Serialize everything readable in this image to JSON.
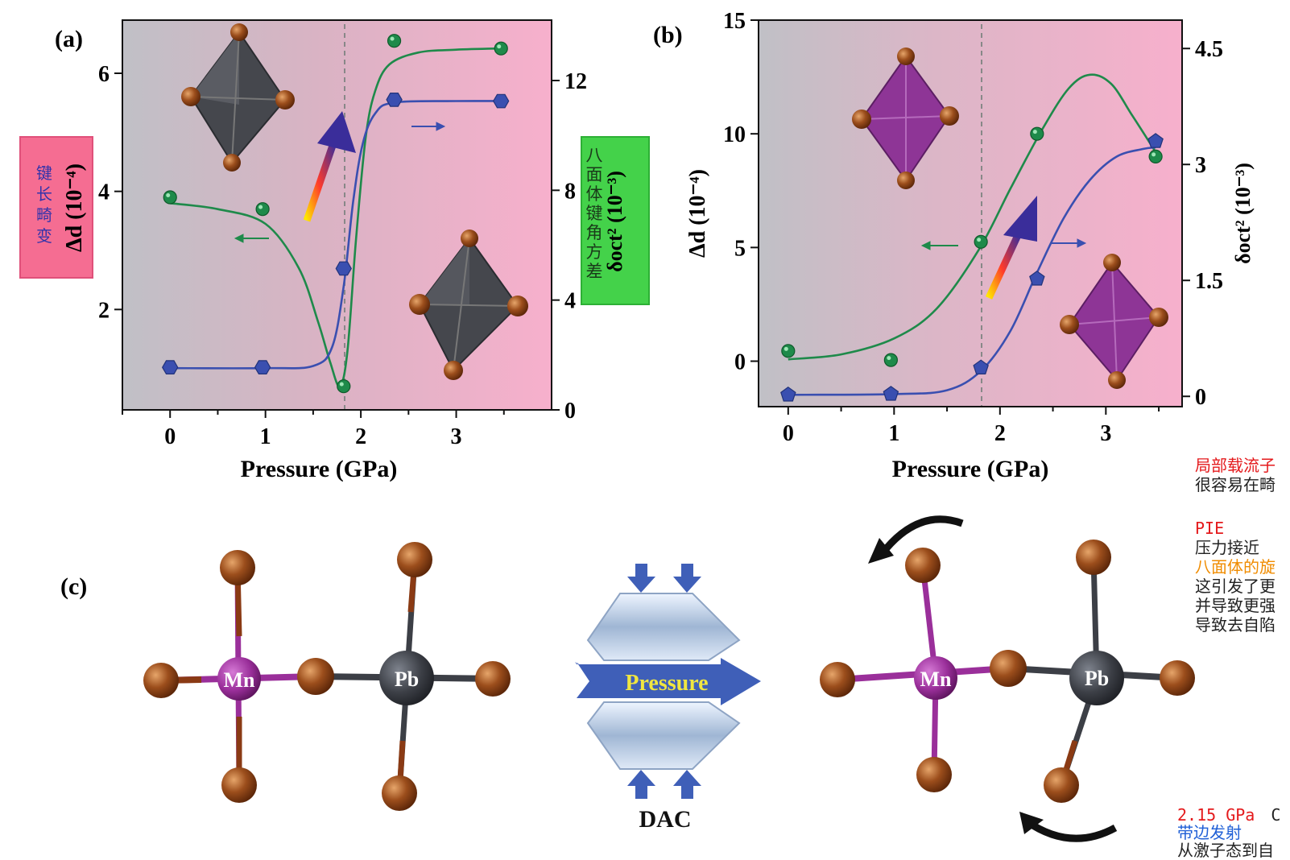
{
  "colors": {
    "green": "#1e8a4a",
    "blue": "#3a4fb0",
    "bg_grey": "#c0c0c6",
    "bg_pink": "#f7b0cc",
    "dash": "#888888",
    "box_pink": "#f56d92",
    "box_green": "#44d24a",
    "octa_grey": "#45474d",
    "octa_purple": "#8e3596",
    "br": "#7a3410",
    "mn": "#9a2f9a",
    "pb": "#3c3f46",
    "arrow": "#3f5fb8",
    "pressure_text": "#f0e640"
  },
  "panels": {
    "a": "(a)",
    "b": "(b)",
    "c": "(c)"
  },
  "chart_data": [
    {
      "type": "line",
      "panel": "(a)",
      "xlabel": "Pressure (GPa)",
      "xlim": [
        -0.5,
        4.0
      ],
      "xticks": [
        "0",
        "1",
        "2",
        "3"
      ],
      "ylabel_left": "Δd (10⁻⁴)",
      "ylim_left": [
        0.3,
        6.9
      ],
      "yticks_left": [
        "2",
        "4",
        "6"
      ],
      "ylabel_right": "δoct² (10⁻³)",
      "ylim_right": [
        0,
        14.2
      ],
      "yticks_right": [
        "0",
        "4",
        "8",
        "12"
      ],
      "vline_x": 1.82,
      "series": [
        {
          "axis": "left",
          "color": "green",
          "marker": "circle",
          "points": [
            [
              0,
              3.9
            ],
            [
              0.97,
              3.7
            ],
            [
              1.82,
              0.7
            ],
            [
              2.35,
              6.55
            ],
            [
              3.47,
              6.42
            ]
          ],
          "fit": [
            [
              0,
              3.8
            ],
            [
              0.5,
              3.7
            ],
            [
              1.0,
              3.45
            ],
            [
              1.35,
              2.7
            ],
            [
              1.55,
              1.8
            ],
            [
              1.68,
              1.1
            ],
            [
              1.78,
              0.7
            ],
            [
              1.86,
              1.3
            ],
            [
              1.95,
              3.2
            ],
            [
              2.05,
              4.9
            ],
            [
              2.15,
              5.7
            ],
            [
              2.3,
              6.15
            ],
            [
              2.6,
              6.35
            ],
            [
              3.0,
              6.4
            ],
            [
              3.47,
              6.42
            ]
          ]
        },
        {
          "axis": "right",
          "color": "blue",
          "marker": "hexagon",
          "points": [
            [
              0,
              1.55
            ],
            [
              0.97,
              1.55
            ],
            [
              1.82,
              5.15
            ],
            [
              2.35,
              11.3
            ],
            [
              3.47,
              11.25
            ]
          ],
          "fit": [
            [
              0,
              1.52
            ],
            [
              1.0,
              1.52
            ],
            [
              1.5,
              1.6
            ],
            [
              1.7,
              2.3
            ],
            [
              1.82,
              4.5
            ],
            [
              1.92,
              7.6
            ],
            [
              2.02,
              9.7
            ],
            [
              2.15,
              10.8
            ],
            [
              2.35,
              11.2
            ],
            [
              3.0,
              11.25
            ],
            [
              3.47,
              11.25
            ]
          ]
        }
      ],
      "boxes": {
        "left_cn": [
          "键",
          "长",
          "畸",
          "变"
        ],
        "right_cn": [
          "八",
          "面",
          "体",
          "键",
          "角",
          "方",
          "差"
        ]
      }
    },
    {
      "type": "line",
      "panel": "(b)",
      "xlabel": "Pressure (GPa)",
      "xlim": [
        -0.28,
        3.72
      ],
      "xticks": [
        "0",
        "1",
        "2",
        "3"
      ],
      "ylabel_left": "Δd (10⁻⁴)",
      "ylim_left": [
        -2,
        15
      ],
      "yticks_left": [
        "0",
        "5",
        "10",
        "15"
      ],
      "ylabel_right": "δoct² (10⁻³)",
      "ylim_right": [
        -0.133,
        4.867
      ],
      "yticks_right": [
        "0",
        "1.5",
        "3",
        "4.5"
      ],
      "vline_x": 1.82,
      "series": [
        {
          "axis": "left",
          "color": "green",
          "marker": "circle",
          "points": [
            [
              0,
              0.45
            ],
            [
              0.97,
              0.05
            ],
            [
              1.82,
              5.25
            ],
            [
              2.35,
              10.0
            ],
            [
              3.47,
              9.0
            ]
          ],
          "fit": [
            [
              0,
              0.08
            ],
            [
              0.5,
              0.3
            ],
            [
              1.0,
              1.0
            ],
            [
              1.4,
              2.3
            ],
            [
              1.8,
              4.9
            ],
            [
              2.1,
              7.6
            ],
            [
              2.4,
              10.2
            ],
            [
              2.65,
              12.0
            ],
            [
              2.85,
              12.6
            ],
            [
              3.05,
              12.2
            ],
            [
              3.25,
              10.8
            ],
            [
              3.47,
              9.2
            ]
          ]
        },
        {
          "axis": "right",
          "color": "blue",
          "marker": "pentagon",
          "points": [
            [
              0,
              0.02
            ],
            [
              0.97,
              0.03
            ],
            [
              1.82,
              0.37
            ],
            [
              2.35,
              1.52
            ],
            [
              3.47,
              3.3
            ]
          ],
          "fit": [
            [
              0,
              0.02
            ],
            [
              1.0,
              0.03
            ],
            [
              1.5,
              0.08
            ],
            [
              1.82,
              0.33
            ],
            [
              2.1,
              0.85
            ],
            [
              2.35,
              1.6
            ],
            [
              2.6,
              2.3
            ],
            [
              2.85,
              2.8
            ],
            [
              3.1,
              3.1
            ],
            [
              3.35,
              3.2
            ],
            [
              3.47,
              3.22
            ]
          ]
        }
      ]
    }
  ],
  "schematic": {
    "mn": "Mn",
    "pb": "Pb",
    "pressure": "Pressure",
    "dac": "DAC"
  },
  "annotations": [
    {
      "cls": "red",
      "text": "局部载流子"
    },
    {
      "cls": "blk",
      "text": "很容易在畸"
    },
    {
      "cls": "red",
      "text": "PIE"
    },
    {
      "cls": "blk",
      "text": "压力接近"
    },
    {
      "cls": "org",
      "text": "八面体的旋"
    },
    {
      "cls": "blk",
      "text": "这引发了更"
    },
    {
      "cls": "blk",
      "text": "并导致更强"
    },
    {
      "cls": "blk",
      "text": "导致去自陷"
    },
    {
      "cls": "red",
      "text": "2.15 GPa"
    },
    {
      "cls": "blk",
      "text": "C"
    },
    {
      "cls": "blu",
      "text": "带边发射"
    },
    {
      "cls": "blk",
      "text": "从激子态到自"
    }
  ]
}
